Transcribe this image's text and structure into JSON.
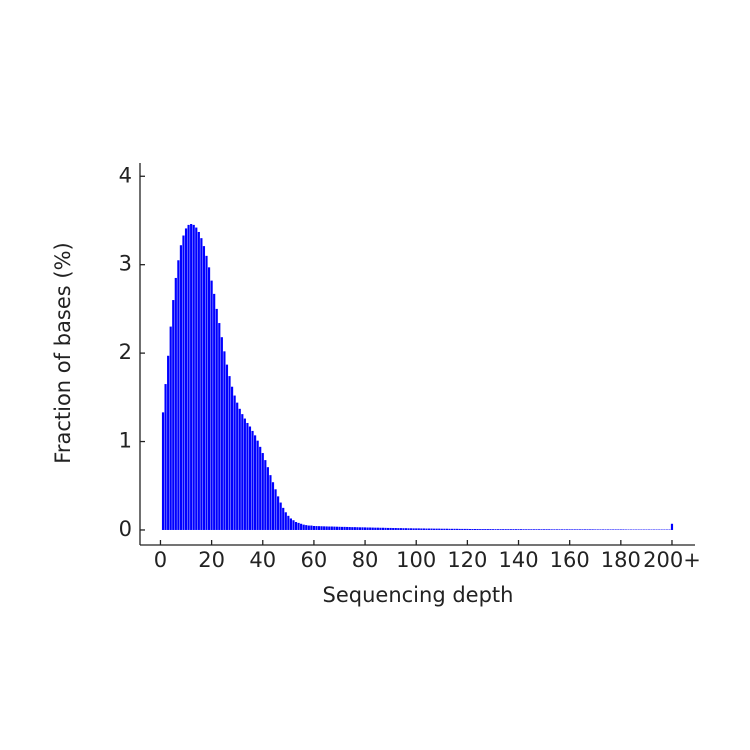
{
  "chart_data": {
    "type": "bar",
    "xlabel": "Sequencing depth",
    "ylabel": "Fraction of bases (%)",
    "color": "#0000ff",
    "x": [
      1,
      2,
      3,
      4,
      5,
      6,
      7,
      8,
      9,
      10,
      11,
      12,
      13,
      14,
      15,
      16,
      17,
      18,
      19,
      20,
      21,
      22,
      23,
      24,
      25,
      26,
      27,
      28,
      29,
      30,
      31,
      32,
      33,
      34,
      35,
      36,
      37,
      38,
      39,
      40,
      41,
      42,
      43,
      44,
      45,
      46,
      47,
      48,
      49,
      50,
      51,
      52,
      53,
      54,
      55,
      56,
      57,
      58,
      59,
      60,
      61,
      62,
      63,
      64,
      65,
      66,
      67,
      68,
      69,
      70,
      71,
      72,
      73,
      74,
      75,
      76,
      77,
      78,
      79,
      80,
      81,
      82,
      83,
      84,
      85,
      86,
      87,
      88,
      89,
      90,
      91,
      92,
      93,
      94,
      95,
      96,
      97,
      98,
      99,
      100,
      101,
      102,
      103,
      104,
      105,
      106,
      107,
      108,
      109,
      110,
      111,
      112,
      113,
      114,
      115,
      116,
      117,
      118,
      119,
      120,
      121,
      122,
      123,
      124,
      125,
      126,
      127,
      128,
      129,
      130,
      131,
      132,
      133,
      134,
      135,
      136,
      137,
      138,
      139,
      140,
      141,
      142,
      143,
      144,
      145,
      146,
      147,
      148,
      149,
      150,
      151,
      152,
      153,
      154,
      155,
      156,
      157,
      158,
      159,
      160,
      161,
      162,
      163,
      164,
      165,
      166,
      167,
      168,
      169,
      170,
      171,
      172,
      173,
      174,
      175,
      176,
      177,
      178,
      179,
      180,
      181,
      182,
      183,
      184,
      185,
      186,
      187,
      188,
      189,
      190,
      191,
      192,
      193,
      194,
      195,
      196,
      197,
      198,
      199,
      200
    ],
    "values": [
      1.33,
      1.65,
      1.97,
      2.3,
      2.6,
      2.85,
      3.05,
      3.22,
      3.33,
      3.41,
      3.45,
      3.46,
      3.45,
      3.42,
      3.37,
      3.3,
      3.21,
      3.1,
      2.97,
      2.82,
      2.67,
      2.5,
      2.34,
      2.18,
      2.02,
      1.87,
      1.74,
      1.62,
      1.52,
      1.44,
      1.37,
      1.31,
      1.26,
      1.21,
      1.17,
      1.12,
      1.07,
      1.01,
      0.94,
      0.87,
      0.79,
      0.71,
      0.62,
      0.54,
      0.46,
      0.38,
      0.31,
      0.25,
      0.2,
      0.16,
      0.13,
      0.11,
      0.09,
      0.08,
      0.07,
      0.06,
      0.055,
      0.05,
      0.05,
      0.045,
      0.044,
      0.043,
      0.042,
      0.041,
      0.04,
      0.039,
      0.039,
      0.038,
      0.037,
      0.036,
      0.035,
      0.035,
      0.034,
      0.033,
      0.032,
      0.032,
      0.031,
      0.03,
      0.03,
      0.029,
      0.028,
      0.028,
      0.027,
      0.026,
      0.026,
      0.025,
      0.025,
      0.024,
      0.023,
      0.023,
      0.022,
      0.022,
      0.021,
      0.021,
      0.02,
      0.02,
      0.019,
      0.019,
      0.018,
      0.018,
      0.018,
      0.017,
      0.017,
      0.016,
      0.016,
      0.016,
      0.015,
      0.015,
      0.015,
      0.014,
      0.014,
      0.014,
      0.013,
      0.013,
      0.013,
      0.013,
      0.012,
      0.012,
      0.012,
      0.012,
      0.011,
      0.011,
      0.011,
      0.011,
      0.01,
      0.01,
      0.01,
      0.01,
      0.01,
      0.009,
      0.009,
      0.009,
      0.009,
      0.009,
      0.009,
      0.009,
      0.009,
      0.009,
      0.009,
      0.009,
      0.009,
      0.008,
      0.008,
      0.008,
      0.008,
      0.008,
      0.008,
      0.008,
      0.008,
      0.008,
      0.008,
      0.008,
      0.007,
      0.007,
      0.007,
      0.007,
      0.007,
      0.007,
      0.007,
      0.007,
      0.007,
      0.007,
      0.007,
      0.007,
      0.007,
      0.007,
      0.007,
      0.007,
      0.007,
      0.006,
      0.006,
      0.006,
      0.006,
      0.006,
      0.006,
      0.006,
      0.006,
      0.006,
      0.006,
      0.006,
      0.006,
      0.005,
      0.005,
      0.005,
      0.005,
      0.005,
      0.005,
      0.005,
      0.005,
      0.005,
      0.005,
      0.005,
      0.005,
      0.005,
      0.005,
      0.005,
      0.005,
      0.005,
      0.005,
      0.07
    ],
    "xlim": [
      -8,
      209
    ],
    "ylim": [
      -0.17,
      4.15
    ],
    "xticks": [
      0,
      20,
      40,
      60,
      80,
      100,
      120,
      140,
      160,
      180,
      {
        "value": 200,
        "label": "200+"
      }
    ],
    "yticks": [
      0,
      1,
      2,
      3,
      4
    ]
  }
}
